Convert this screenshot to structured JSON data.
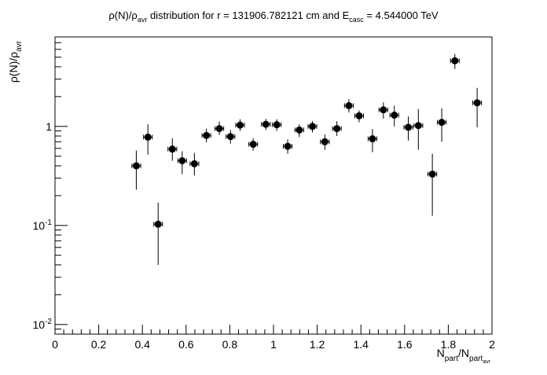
{
  "chart_data": {
    "type": "scatter",
    "title": {
      "main": "ρ(N)/ρ",
      "main_sub": "avr",
      "middle": " distribution for r = 131906.782121 cm and E",
      "e_sub": "casc",
      "tail": " = 4.544000 TeV"
    },
    "xlabel": {
      "main": "N",
      "sub1": "part",
      "slash": "/N",
      "sub2": "part",
      "sub3": "avr"
    },
    "ylabel": {
      "main": "ρ(N)/ρ",
      "sub": "avr"
    },
    "xlim": [
      0,
      2
    ],
    "ylim": [
      0.008,
      8
    ],
    "yscale": "log",
    "x_tick_labels": [
      "0",
      "0.2",
      "0.4",
      "0.6",
      "0.8",
      "1",
      "1.2",
      "1.4",
      "1.6",
      "1.8",
      "2"
    ],
    "y_tick_labels": [
      {
        "value": 0.01,
        "base": "10",
        "exp": "-2"
      },
      {
        "value": 0.1,
        "base": "10",
        "exp": "-1"
      },
      {
        "value": 1,
        "base": "1",
        "exp": ""
      }
    ],
    "grid": false,
    "marker_color": "#000000",
    "points": [
      {
        "x": 0.372,
        "y": 0.4,
        "xerr": 0.02,
        "ylo": 0.23,
        "yhi": 0.57
      },
      {
        "x": 0.425,
        "y": 0.78,
        "xerr": 0.02,
        "ylo": 0.52,
        "yhi": 1.05
      },
      {
        "x": 0.472,
        "y": 0.103,
        "xerr": 0.02,
        "ylo": 0.04,
        "yhi": 0.17
      },
      {
        "x": 0.537,
        "y": 0.59,
        "xerr": 0.02,
        "ylo": 0.45,
        "yhi": 0.76
      },
      {
        "x": 0.582,
        "y": 0.45,
        "xerr": 0.02,
        "ylo": 0.33,
        "yhi": 0.56
      },
      {
        "x": 0.638,
        "y": 0.42,
        "xerr": 0.02,
        "ylo": 0.32,
        "yhi": 0.54
      },
      {
        "x": 0.693,
        "y": 0.81,
        "xerr": 0.02,
        "ylo": 0.69,
        "yhi": 0.95
      },
      {
        "x": 0.752,
        "y": 0.95,
        "xerr": 0.02,
        "ylo": 0.82,
        "yhi": 1.12
      },
      {
        "x": 0.803,
        "y": 0.79,
        "xerr": 0.02,
        "ylo": 0.67,
        "yhi": 0.92
      },
      {
        "x": 0.847,
        "y": 1.03,
        "xerr": 0.02,
        "ylo": 0.9,
        "yhi": 1.18
      },
      {
        "x": 0.907,
        "y": 0.66,
        "xerr": 0.02,
        "ylo": 0.57,
        "yhi": 0.76
      },
      {
        "x": 0.965,
        "y": 1.05,
        "xerr": 0.02,
        "ylo": 0.92,
        "yhi": 1.19
      },
      {
        "x": 1.015,
        "y": 1.04,
        "xerr": 0.02,
        "ylo": 0.9,
        "yhi": 1.18
      },
      {
        "x": 1.065,
        "y": 0.63,
        "xerr": 0.02,
        "ylo": 0.53,
        "yhi": 0.74
      },
      {
        "x": 1.118,
        "y": 0.92,
        "xerr": 0.02,
        "ylo": 0.78,
        "yhi": 1.05
      },
      {
        "x": 1.178,
        "y": 1.0,
        "xerr": 0.02,
        "ylo": 0.87,
        "yhi": 1.13
      },
      {
        "x": 1.235,
        "y": 0.7,
        "xerr": 0.02,
        "ylo": 0.58,
        "yhi": 0.83
      },
      {
        "x": 1.29,
        "y": 0.95,
        "xerr": 0.02,
        "ylo": 0.8,
        "yhi": 1.13
      },
      {
        "x": 1.345,
        "y": 1.62,
        "xerr": 0.02,
        "ylo": 1.38,
        "yhi": 1.88
      },
      {
        "x": 1.392,
        "y": 1.28,
        "xerr": 0.02,
        "ylo": 1.1,
        "yhi": 1.45
      },
      {
        "x": 1.453,
        "y": 0.75,
        "xerr": 0.02,
        "ylo": 0.55,
        "yhi": 0.94
      },
      {
        "x": 1.503,
        "y": 1.47,
        "xerr": 0.02,
        "ylo": 1.2,
        "yhi": 1.75
      },
      {
        "x": 1.553,
        "y": 1.3,
        "xerr": 0.02,
        "ylo": 1.0,
        "yhi": 1.62
      },
      {
        "x": 1.617,
        "y": 0.98,
        "xerr": 0.02,
        "ylo": 0.72,
        "yhi": 1.26
      },
      {
        "x": 1.663,
        "y": 1.02,
        "xerr": 0.02,
        "ylo": 0.58,
        "yhi": 1.5
      },
      {
        "x": 1.727,
        "y": 0.33,
        "xerr": 0.02,
        "ylo": 0.125,
        "yhi": 0.53
      },
      {
        "x": 1.77,
        "y": 1.1,
        "xerr": 0.02,
        "ylo": 0.7,
        "yhi": 1.52
      },
      {
        "x": 1.83,
        "y": 4.6,
        "xerr": 0.02,
        "ylo": 3.8,
        "yhi": 5.4
      },
      {
        "x": 1.932,
        "y": 1.73,
        "xerr": 0.02,
        "ylo": 0.98,
        "yhi": 2.45
      }
    ]
  }
}
